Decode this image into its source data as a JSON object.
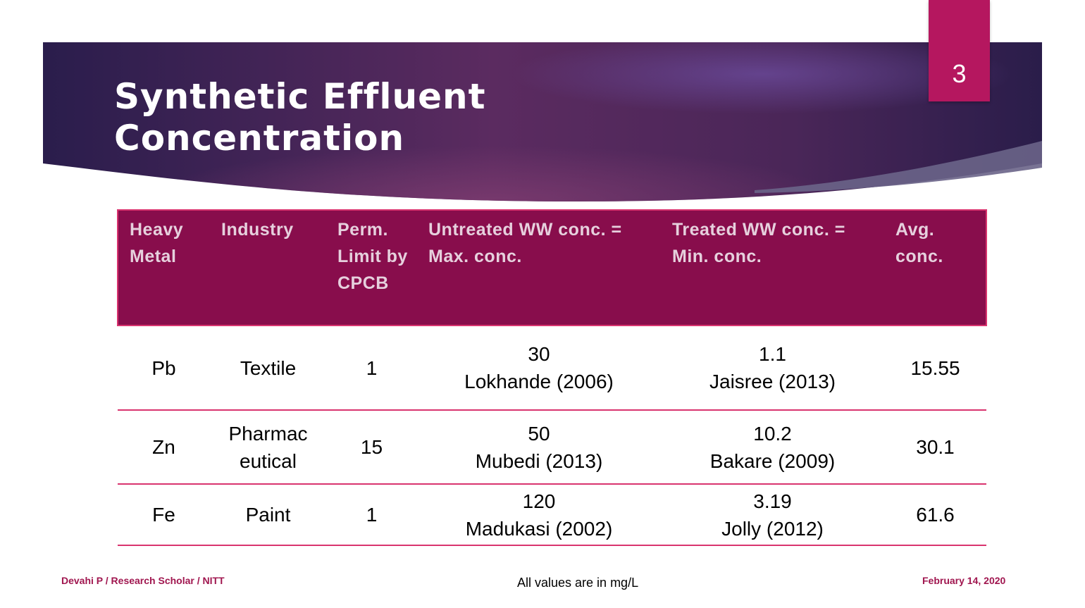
{
  "slide": {
    "number": "3",
    "title": "Synthetic Effluent\nConcentration",
    "colors": {
      "banner_dark": "#241a46",
      "banner_mid": "#5a2a5e",
      "accent": "#b5175f",
      "header_fill": "#880d4c",
      "border": "#d9346f"
    }
  },
  "table": {
    "headers": [
      "Heavy Metal",
      "Industry",
      "Perm. Limit by CPCB",
      "Untreated WW conc. = Max. conc.",
      "Treated WW conc. = Min. conc.",
      "Avg. conc."
    ],
    "rows": [
      {
        "metal": "Pb",
        "industry": "Textile",
        "limit": "1",
        "untreated_value": "30",
        "untreated_ref": "Lokhande (2006)",
        "treated_value": "1.1",
        "treated_ref": "Jaisree (2013)",
        "avg": "15.55"
      },
      {
        "metal": "Zn",
        "industry": "Pharmaceutical",
        "industry_line1": "Pharmac",
        "industry_line2": "eutical",
        "limit": "15",
        "untreated_value": "50",
        "untreated_ref": "Mubedi (2013)",
        "treated_value": "10.2",
        "treated_ref": "Bakare (2009)",
        "avg": "30.1"
      },
      {
        "metal": "Fe",
        "industry": "Paint",
        "limit": "1",
        "untreated_value": "120",
        "untreated_ref": "Madukasi (2002)",
        "treated_value": "3.19",
        "treated_ref": "Jolly (2012)",
        "avg": "61.6"
      }
    ]
  },
  "footer": {
    "left": "Devahi P / Research Scholar / NITT",
    "center": "All values are in mg/L",
    "right": "February 14, 2020"
  }
}
